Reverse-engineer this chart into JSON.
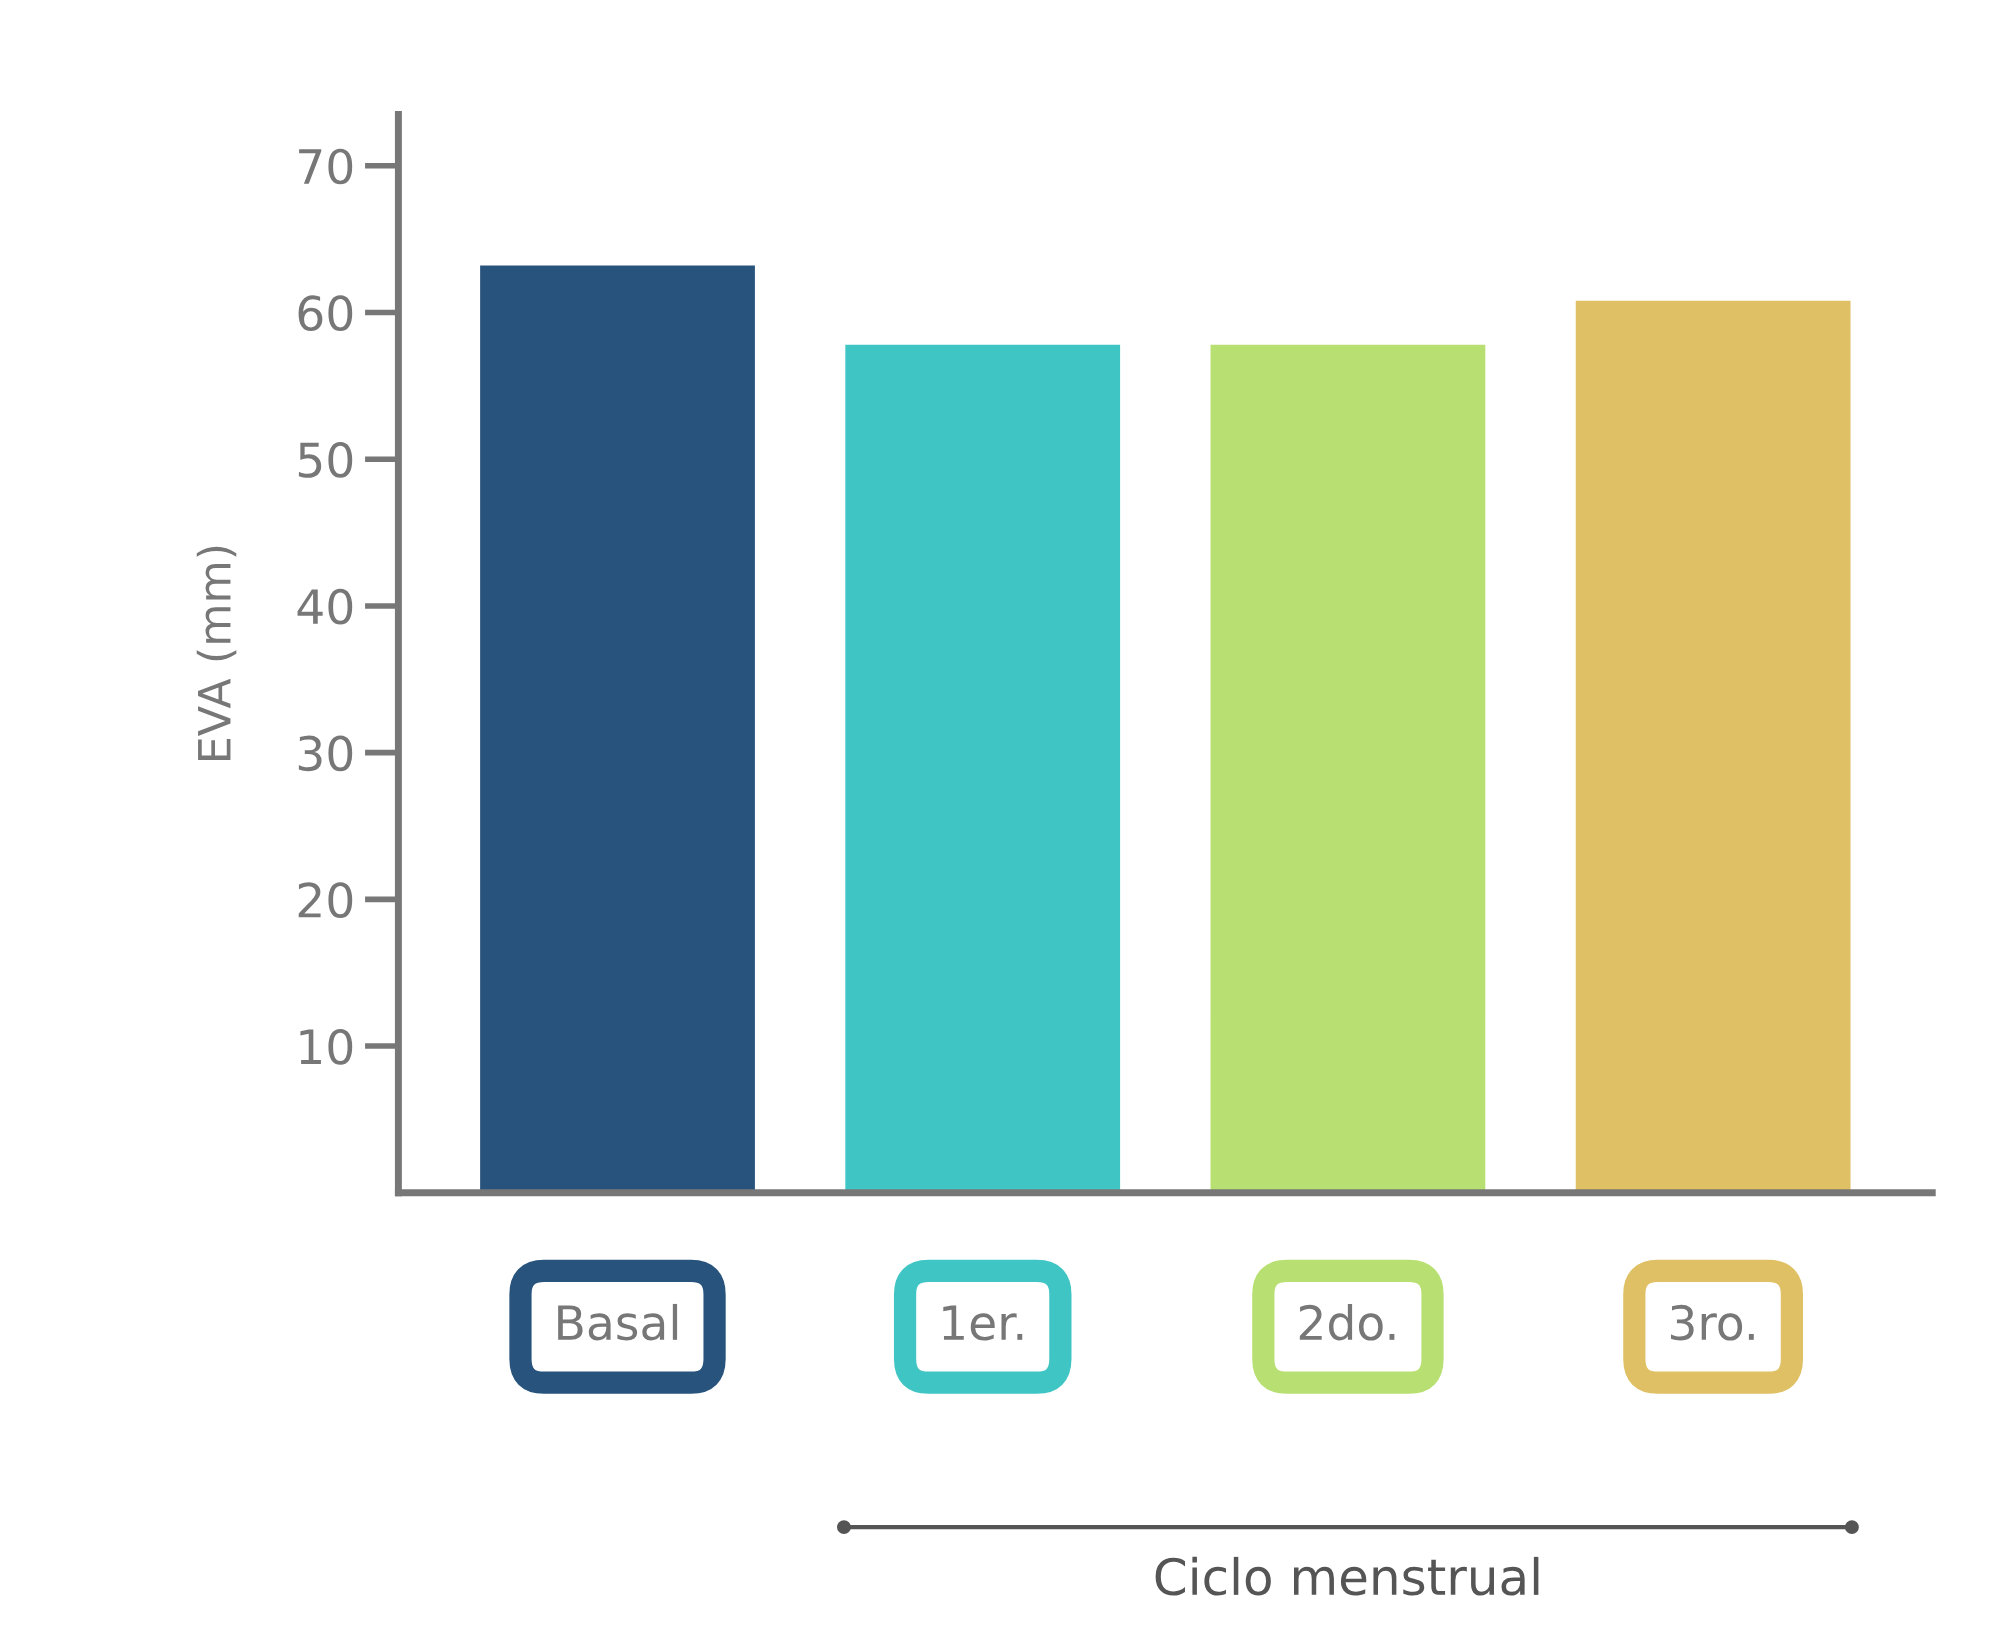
{
  "chart_data": {
    "type": "bar",
    "ylabel": "EVA (mm)",
    "categories": [
      "Basal",
      "1er.",
      "2do.",
      "3ro."
    ],
    "values": [
      63.3,
      57.9,
      57.9,
      60.9
    ],
    "colors": [
      "#27537d",
      "#40c5c5",
      "#b8df72",
      "#e0c064"
    ],
    "ylim": [
      0,
      73.5
    ],
    "yticks": [
      10,
      20,
      30,
      40,
      50,
      60,
      70
    ],
    "grid": false,
    "annotations": [
      "Ciclo menstrual"
    ]
  }
}
